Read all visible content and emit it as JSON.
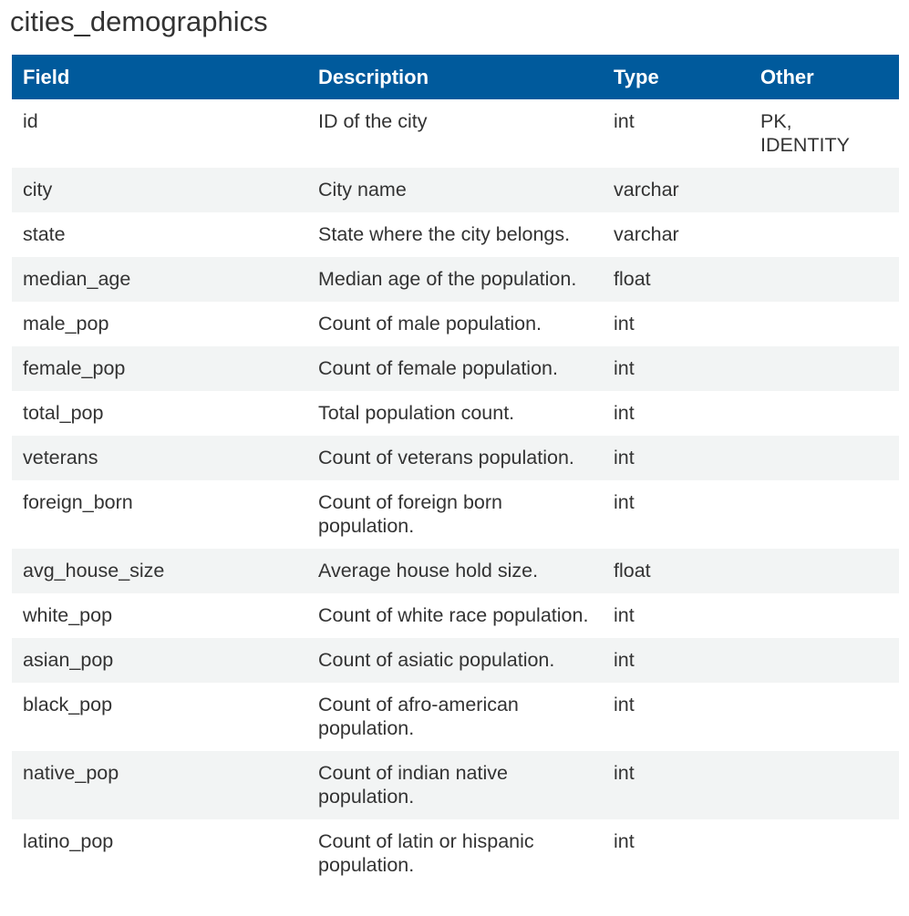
{
  "title": "cities_demographics",
  "table": {
    "headers": {
      "field": "Field",
      "description": "Description",
      "type": "Type",
      "other": "Other"
    },
    "rows": [
      {
        "field": "id",
        "description": "ID of the city",
        "type": "int",
        "other": "PK,\nIDENTITY"
      },
      {
        "field": "city",
        "description": "City name",
        "type": "varchar",
        "other": ""
      },
      {
        "field": "state",
        "description": "State where the city belongs.",
        "type": "varchar",
        "other": ""
      },
      {
        "field": "median_age",
        "description": "Median age of the population.",
        "type": "float",
        "other": ""
      },
      {
        "field": "male_pop",
        "description": "Count of male population.",
        "type": "int",
        "other": ""
      },
      {
        "field": "female_pop",
        "description": "Count of female population.",
        "type": "int",
        "other": ""
      },
      {
        "field": "total_pop",
        "description": "Total population count.",
        "type": "int",
        "other": ""
      },
      {
        "field": "veterans",
        "description": "Count of veterans population.",
        "type": "int",
        "other": ""
      },
      {
        "field": "foreign_born",
        "description": "Count of foreign born population.",
        "type": "int",
        "other": ""
      },
      {
        "field": "avg_house_size",
        "description": "Average house hold size.",
        "type": "float",
        "other": ""
      },
      {
        "field": "white_pop",
        "description": "Count of white race population.",
        "type": "int",
        "other": ""
      },
      {
        "field": "asian_pop",
        "description": "Count of asiatic population.",
        "type": "int",
        "other": ""
      },
      {
        "field": "black_pop",
        "description": "Count of afro-american population.",
        "type": "int",
        "other": ""
      },
      {
        "field": "native_pop",
        "description": "Count of indian native population.",
        "type": "int",
        "other": ""
      },
      {
        "field": "latino_pop",
        "description": "Count of latin or hispanic population.",
        "type": "int",
        "other": ""
      }
    ]
  },
  "colors": {
    "header_bg": "#005a9c",
    "header_text": "#ffffff",
    "stripe_bg": "#f2f4f4",
    "text": "#333333"
  }
}
